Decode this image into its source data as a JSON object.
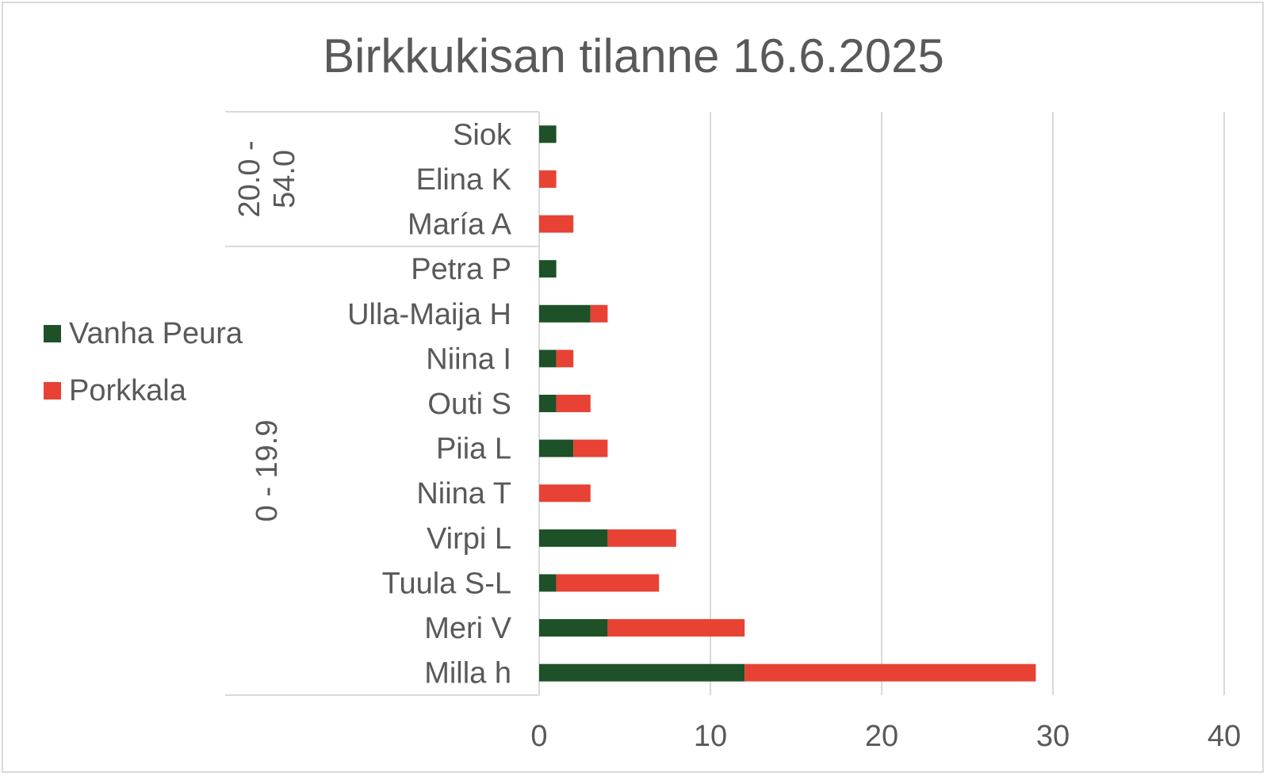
{
  "chart_data": {
    "type": "bar",
    "orientation": "horizontal",
    "stacked": true,
    "title": "Birkkukisan tilanne 16.6.2025",
    "xlabel": "",
    "ylabel": "",
    "xlim": [
      0,
      40
    ],
    "x_ticks": [
      0,
      10,
      20,
      30,
      40
    ],
    "grid": true,
    "legend_position": "left",
    "categories": [
      "Siok",
      "Elina K",
      "María A",
      "Petra P",
      "Ulla-Maija H",
      "Niina I",
      "Outi S",
      "Piia L",
      "Niina T",
      "Virpi L",
      "Tuula S-L",
      "Meri V",
      "Milla h"
    ],
    "groups": [
      {
        "label": "20.0 - 54.0",
        "lines": [
          "20.0 -",
          "54.0"
        ],
        "members": [
          "Siok",
          "Elina K",
          "María A"
        ]
      },
      {
        "label": "0 - 19.9",
        "lines": [
          "0 - 19.9"
        ],
        "members": [
          "Petra P",
          "Ulla-Maija H",
          "Niina I",
          "Outi S",
          "Piia L",
          "Niina T",
          "Virpi L",
          "Tuula S-L",
          "Meri V",
          "Milla h"
        ]
      }
    ],
    "series": [
      {
        "name": "Vanha Peura",
        "color": "#1e5128",
        "values": [
          1,
          0,
          0,
          1,
          3,
          1,
          1,
          2,
          0,
          4,
          1,
          4,
          12
        ]
      },
      {
        "name": "Porkkala",
        "color": "#e84234",
        "values": [
          0,
          1,
          2,
          0,
          1,
          1,
          2,
          2,
          3,
          4,
          6,
          8,
          17
        ]
      }
    ]
  }
}
